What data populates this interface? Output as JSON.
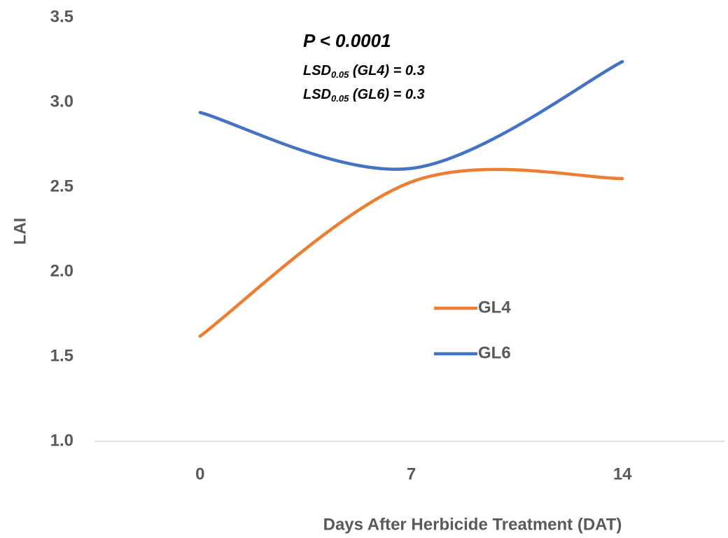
{
  "chart_data": {
    "type": "line",
    "x_label": "Days After  Herbicide Treatment (DAT)",
    "y_label": "LAI",
    "categories": [
      "0",
      "7",
      "14"
    ],
    "series": [
      {
        "name": "GL4",
        "color": "#ed7d31",
        "values": [
          1.62,
          2.53,
          2.55
        ]
      },
      {
        "name": "GL6",
        "color": "#4472c4",
        "values": [
          2.94,
          2.61,
          3.24
        ]
      }
    ],
    "ylim": [
      1.0,
      3.5
    ],
    "yticks": [
      {
        "value": 1.0,
        "label": "1.0"
      },
      {
        "value": 1.5,
        "label": "1.5"
      },
      {
        "value": 2.0,
        "label": "2.0"
      },
      {
        "value": 2.5,
        "label": "2.5"
      },
      {
        "value": 3.0,
        "label": "3.0"
      },
      {
        "value": 3.5,
        "label": "3.5"
      }
    ],
    "smooth": true,
    "legend_position": "center-right",
    "annotations": [
      {
        "text": "P < 0.0001"
      },
      {
        "text": "LSD",
        "sub": "0.05",
        "rest": " (GL4) = 0.3"
      },
      {
        "text": "LSD",
        "sub": "0.05",
        "rest": " (GL6) = 0.3"
      }
    ]
  }
}
